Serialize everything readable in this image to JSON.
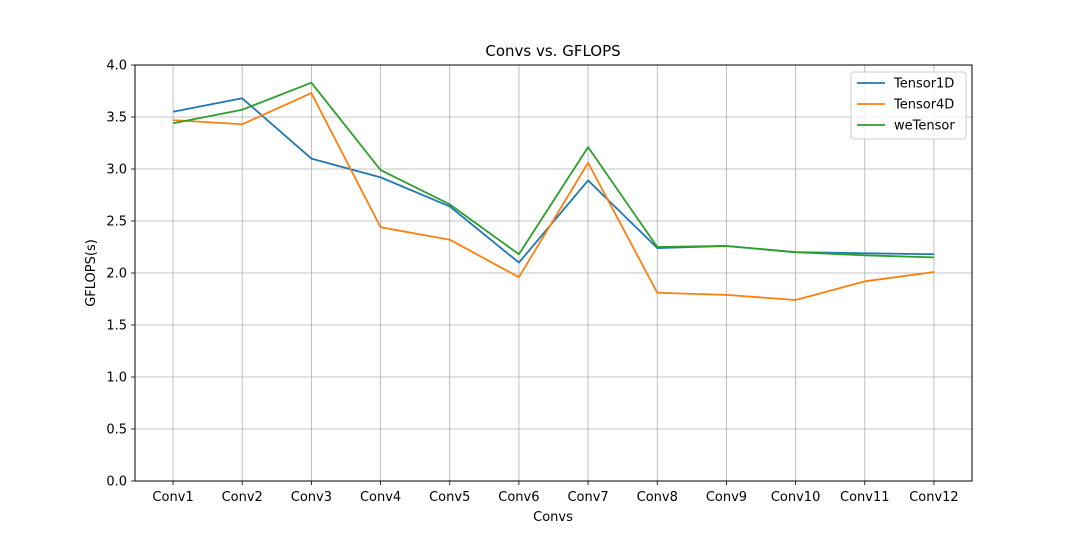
{
  "chart_data": {
    "type": "line",
    "title": "Convs vs. GFLOPS",
    "xlabel": "Convs",
    "ylabel": "GFLOPS(s)",
    "categories": [
      "Conv1",
      "Conv2",
      "Conv3",
      "Conv4",
      "Conv5",
      "Conv6",
      "Conv7",
      "Conv8",
      "Conv9",
      "Conv10",
      "Conv11",
      "Conv12"
    ],
    "ylim": [
      0,
      4
    ],
    "yticks": [
      0.0,
      0.5,
      1.0,
      1.5,
      2.0,
      2.5,
      3.0,
      3.5,
      4.0
    ],
    "ytick_labels": [
      "0.0",
      "0.5",
      "1.0",
      "1.5",
      "2.0",
      "2.5",
      "3.0",
      "3.5",
      "4.0"
    ],
    "grid": true,
    "legend_position": "top-right",
    "series": [
      {
        "name": "Tensor1D",
        "color": "#1f77b4",
        "values": [
          3.55,
          3.68,
          3.1,
          2.92,
          2.64,
          2.1,
          2.89,
          2.24,
          2.26,
          2.2,
          2.19,
          2.18
        ]
      },
      {
        "name": "Tensor4D",
        "color": "#ff7f0e",
        "values": [
          3.47,
          3.43,
          3.73,
          2.44,
          2.32,
          1.96,
          3.06,
          1.81,
          1.79,
          1.74,
          1.92,
          2.01
        ]
      },
      {
        "name": "weTensor",
        "color": "#2ca02c",
        "values": [
          3.44,
          3.57,
          3.83,
          2.99,
          2.66,
          2.18,
          3.21,
          2.25,
          2.26,
          2.2,
          2.17,
          2.15
        ]
      }
    ]
  }
}
